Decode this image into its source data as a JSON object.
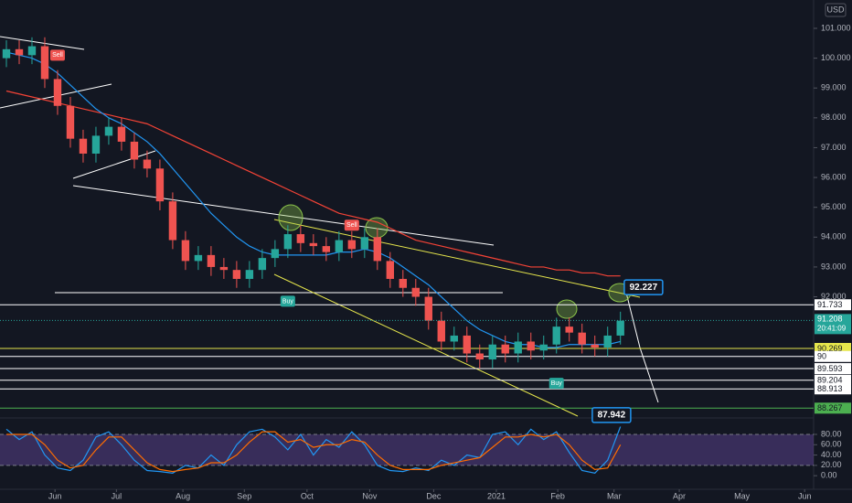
{
  "chart_data": {
    "type": "candlestick",
    "currency": "USD",
    "open": [
      100.0,
      100.3,
      100.1,
      100.4,
      99.3,
      98.4,
      97.3,
      96.8,
      97.4,
      97.7,
      97.2,
      96.6,
      96.3,
      95.2,
      93.9,
      93.2,
      93.4,
      93.0,
      92.9,
      92.6,
      92.9,
      93.3,
      93.6,
      94.1,
      93.8,
      93.7,
      93.5,
      93.9,
      93.6,
      94.0,
      93.2,
      92.6,
      92.3,
      92.0,
      91.2,
      90.5,
      90.7,
      90.1,
      89.9,
      90.4,
      90.1,
      90.5,
      90.2,
      90.4,
      91.0,
      90.8,
      90.4,
      90.3,
      90.7
    ],
    "high": [
      100.6,
      100.6,
      100.7,
      100.7,
      99.6,
      98.7,
      97.6,
      97.7,
      98.0,
      98.0,
      97.5,
      96.9,
      96.6,
      95.5,
      94.2,
      93.7,
      93.7,
      93.3,
      93.2,
      93.2,
      93.6,
      93.9,
      94.4,
      94.4,
      94.1,
      94.0,
      94.2,
      94.2,
      94.3,
      94.3,
      93.5,
      92.9,
      92.6,
      92.3,
      91.5,
      91.0,
      91.0,
      90.4,
      90.7,
      90.7,
      90.8,
      90.8,
      90.7,
      91.3,
      91.3,
      91.1,
      90.7,
      91.0,
      91.5
    ],
    "low": [
      99.7,
      99.8,
      99.8,
      99.0,
      98.1,
      97.0,
      96.5,
      96.5,
      97.1,
      96.9,
      96.3,
      96.0,
      94.9,
      93.6,
      92.9,
      92.9,
      92.7,
      92.6,
      92.3,
      92.3,
      92.6,
      93.0,
      93.3,
      93.5,
      93.4,
      93.2,
      93.2,
      93.3,
      93.3,
      92.9,
      92.3,
      92.0,
      91.7,
      90.9,
      90.2,
      90.2,
      89.8,
      89.6,
      89.6,
      89.8,
      89.8,
      89.9,
      89.9,
      90.1,
      90.5,
      90.1,
      90.0,
      90.0,
      90.4
    ],
    "close": [
      100.3,
      100.1,
      100.4,
      99.3,
      98.4,
      97.3,
      96.8,
      97.4,
      97.7,
      97.2,
      96.6,
      96.3,
      95.2,
      93.9,
      93.2,
      93.4,
      93.0,
      92.9,
      92.6,
      92.9,
      93.3,
      93.6,
      94.1,
      93.8,
      93.7,
      93.5,
      93.9,
      93.6,
      94.0,
      93.2,
      92.6,
      92.3,
      92.0,
      91.2,
      90.5,
      90.7,
      90.1,
      89.9,
      90.4,
      90.1,
      90.5,
      90.2,
      90.4,
      91.0,
      90.8,
      90.4,
      90.3,
      90.7,
      91.2
    ],
    "up_color": "#26a69a",
    "down_color": "#ef5350",
    "series": [
      {
        "color": "#f44336",
        "values": [
          98.9,
          98.8,
          98.7,
          98.6,
          98.5,
          98.4,
          98.3,
          98.2,
          98.1,
          98.0,
          97.9,
          97.8,
          97.6,
          97.4,
          97.2,
          97.0,
          96.8,
          96.6,
          96.4,
          96.2,
          96.0,
          95.8,
          95.6,
          95.4,
          95.2,
          95.0,
          94.8,
          94.7,
          94.6,
          94.5,
          94.3,
          94.1,
          93.9,
          93.8,
          93.7,
          93.6,
          93.5,
          93.4,
          93.3,
          93.2,
          93.1,
          93.0,
          93.0,
          92.9,
          92.9,
          92.8,
          92.8,
          92.7,
          92.7
        ]
      },
      {
        "color": "#2196f3",
        "values": [
          100.2,
          100.1,
          100.0,
          99.8,
          99.5,
          99.1,
          98.7,
          98.3,
          98.0,
          97.8,
          97.5,
          97.2,
          96.8,
          96.3,
          95.8,
          95.3,
          94.8,
          94.4,
          94.0,
          93.7,
          93.5,
          93.4,
          93.4,
          93.4,
          93.4,
          93.4,
          93.5,
          93.5,
          93.6,
          93.5,
          93.3,
          93.0,
          92.7,
          92.4,
          92.0,
          91.6,
          91.2,
          90.9,
          90.7,
          90.5,
          90.4,
          90.4,
          90.3,
          90.3,
          90.4,
          90.4,
          90.4,
          90.4,
          90.5
        ]
      }
    ],
    "xlim": [
      -0.5,
      63.1
    ],
    "xticks": [
      {
        "value": 3.8,
        "label": "Jun"
      },
      {
        "value": 8.6,
        "label": "Jul"
      },
      {
        "value": 13.8,
        "label": "Aug"
      },
      {
        "value": 18.6,
        "label": "Sep"
      },
      {
        "value": 23.5,
        "label": "Oct"
      },
      {
        "value": 28.4,
        "label": "Nov"
      },
      {
        "value": 33.4,
        "label": "Dec"
      },
      {
        "value": 38.3,
        "label": "2021"
      },
      {
        "value": 43.1,
        "label": "Feb"
      },
      {
        "value": 47.5,
        "label": "Mar"
      },
      {
        "value": 52.6,
        "label": "Apr"
      },
      {
        "value": 57.5,
        "label": "May"
      },
      {
        "value": 62.4,
        "label": "Jun"
      }
    ],
    "ylim": [
      88.0,
      101.95
    ],
    "yticks": [
      {
        "value": 101,
        "label": "101.000"
      },
      {
        "value": 100,
        "label": "100.000"
      },
      {
        "value": 99,
        "label": "99.000"
      },
      {
        "value": 98,
        "label": "98.000"
      },
      {
        "value": 97,
        "label": "97.000"
      },
      {
        "value": 96,
        "label": "96.000"
      },
      {
        "value": 95,
        "label": "95.000"
      },
      {
        "value": 94,
        "label": "94.000"
      },
      {
        "value": 93,
        "label": "93.000"
      },
      {
        "value": 92,
        "label": "92.000"
      }
    ],
    "levels": [
      {
        "value": 91.733,
        "color": "#ffffff"
      },
      {
        "value": 90.269,
        "color": "#e6e64c"
      },
      {
        "value": 90.0,
        "color": "#ffffff"
      },
      {
        "value": 89.593,
        "color": "#ffffff"
      },
      {
        "value": 89.204,
        "color": "#ffffff"
      },
      {
        "value": 88.913,
        "color": "#ffffff"
      },
      {
        "value": 88.267,
        "color": "#4caf50"
      }
    ],
    "last_price": 91.208,
    "countdown": "20:41:09",
    "callouts": [
      {
        "value": 92.227,
        "index": 49.8
      },
      {
        "value": 87.942,
        "index": 47.3
      }
    ],
    "signals": [
      {
        "label": "Sell",
        "index": 4,
        "price": 100.1,
        "color": "#ef5350"
      },
      {
        "label": "Buy",
        "index": 22,
        "price": 91.85,
        "color": "#26a69a"
      },
      {
        "label": "Sell",
        "index": 27,
        "price": 94.4,
        "color": "#ef5350"
      },
      {
        "label": "Buy",
        "index": 43,
        "price": 89.1,
        "color": "#26a69a"
      }
    ],
    "oscillator": {
      "ylim": [
        -21,
        103
      ],
      "yticks": [
        {
          "value": 80,
          "label": "80.00"
        },
        {
          "value": 60,
          "label": "60.00"
        },
        {
          "value": 40,
          "label": "40.00"
        },
        {
          "value": 20,
          "label": "20.00"
        },
        {
          "value": 0,
          "label": "0.00"
        }
      ],
      "band": [
        20,
        80
      ],
      "series": [
        {
          "color": "#2196f3",
          "values": [
            90,
            70,
            85,
            40,
            15,
            10,
            30,
            75,
            85,
            60,
            30,
            10,
            8,
            5,
            20,
            15,
            40,
            20,
            60,
            85,
            90,
            75,
            50,
            80,
            40,
            70,
            55,
            85,
            60,
            20,
            10,
            8,
            15,
            10,
            30,
            20,
            40,
            35,
            80,
            85,
            60,
            90,
            70,
            85,
            45,
            10,
            5,
            30,
            95
          ]
        },
        {
          "color": "#ff6d00",
          "values": [
            80,
            80,
            80,
            60,
            30,
            15,
            20,
            50,
            75,
            75,
            50,
            25,
            12,
            8,
            12,
            15,
            25,
            25,
            40,
            65,
            85,
            85,
            65,
            70,
            55,
            60,
            60,
            70,
            65,
            40,
            20,
            12,
            12,
            12,
            20,
            25,
            30,
            35,
            55,
            75,
            75,
            80,
            75,
            80,
            60,
            30,
            12,
            15,
            60
          ]
        }
      ]
    }
  }
}
